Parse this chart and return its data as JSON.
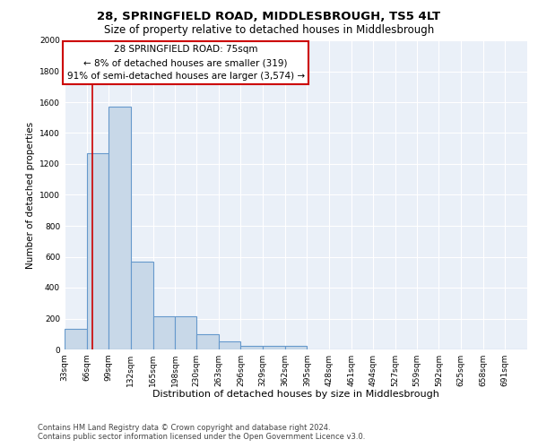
{
  "title1": "28, SPRINGFIELD ROAD, MIDDLESBROUGH, TS5 4LT",
  "title2": "Size of property relative to detached houses in Middlesbrough",
  "xlabel": "Distribution of detached houses by size in Middlesbrough",
  "ylabel": "Number of detached properties",
  "bin_labels": [
    "33sqm",
    "66sqm",
    "99sqm",
    "132sqm",
    "165sqm",
    "198sqm",
    "230sqm",
    "263sqm",
    "296sqm",
    "329sqm",
    "362sqm",
    "395sqm",
    "428sqm",
    "461sqm",
    "494sqm",
    "527sqm",
    "559sqm",
    "592sqm",
    "625sqm",
    "658sqm",
    "691sqm"
  ],
  "bin_edges": [
    33,
    66,
    99,
    132,
    165,
    198,
    230,
    263,
    296,
    329,
    362,
    395,
    428,
    461,
    494,
    527,
    559,
    592,
    625,
    658,
    691,
    724
  ],
  "bar_heights": [
    135,
    1270,
    1570,
    570,
    215,
    215,
    100,
    50,
    25,
    25,
    25,
    0,
    0,
    0,
    0,
    0,
    0,
    0,
    0,
    0,
    0
  ],
  "bar_color": "#c8d8e8",
  "bar_edgecolor": "#6699cc",
  "bar_linewidth": 0.8,
  "plot_bg_color": "#eaf0f8",
  "fig_bg_color": "#ffffff",
  "grid_color": "#ffffff",
  "red_line_x": 75,
  "red_line_color": "#cc0000",
  "annotation_text": "28 SPRINGFIELD ROAD: 75sqm\n← 8% of detached houses are smaller (319)\n91% of semi-detached houses are larger (3,574) →",
  "annotation_box_color": "#cc0000",
  "ylim": [
    0,
    2000
  ],
  "yticks": [
    0,
    200,
    400,
    600,
    800,
    1000,
    1200,
    1400,
    1600,
    1800,
    2000
  ],
  "footnote": "Contains HM Land Registry data © Crown copyright and database right 2024.\nContains public sector information licensed under the Open Government Licence v3.0.",
  "title1_fontsize": 9.5,
  "title2_fontsize": 8.5,
  "xlabel_fontsize": 8,
  "ylabel_fontsize": 7.5,
  "tick_fontsize": 6.5,
  "annotation_fontsize": 7.5,
  "footnote_fontsize": 6
}
